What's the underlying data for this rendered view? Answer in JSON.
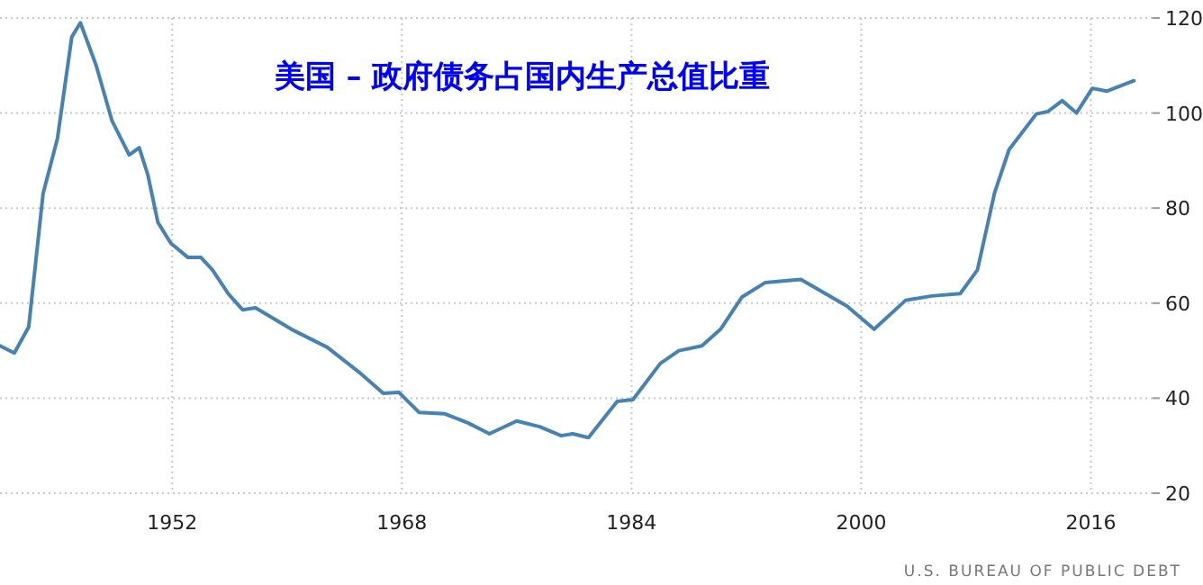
{
  "chart_data": {
    "type": "line",
    "title": "美国 – 政府债务占国内生产总值比重",
    "annotations": [
      "U.S. BUREAU OF PUBLIC DEBT"
    ],
    "x": [
      1940,
      1941,
      1942,
      1943,
      1944,
      1945,
      1945.6,
      1946.7,
      1947.8,
      1949,
      1949.7,
      1950.3,
      1951,
      1951.9,
      1953.1,
      1954,
      1954.8,
      1955.9,
      1956.9,
      1957.8,
      1960.3,
      1962.8,
      1965,
      1966.7,
      1967.8,
      1969.2,
      1971,
      1972.6,
      1974.1,
      1976,
      1977.6,
      1979.1,
      1979.9,
      1981,
      1982.6,
      1983,
      1984.1,
      1986,
      1987.3,
      1988.9,
      1990.2,
      1991.7,
      1993.3,
      1995.8,
      1999,
      2000.9,
      2003.1,
      2004.9,
      2006.9,
      2008.1,
      2009.3,
      2010.3,
      2012.2,
      2013,
      2014,
      2015,
      2016.1,
      2017.1,
      2019
    ],
    "values": [
      51,
      49.5,
      55,
      83,
      94.6,
      116,
      119,
      110,
      98.4,
      91.2,
      92.7,
      87,
      77,
      72.6,
      69.6,
      69.6,
      67,
      62,
      58.6,
      59,
      54.5,
      50.7,
      45.5,
      41,
      41.2,
      37,
      36.7,
      34.8,
      32.5,
      35.2,
      34,
      32.1,
      32.5,
      31.7,
      37.8,
      39.3,
      39.7,
      47.3,
      50,
      51,
      54.5,
      61.3,
      64.3,
      65,
      59.4,
      54.5,
      60.6,
      61.5,
      62,
      67,
      83.3,
      92.3,
      99.8,
      100.3,
      102.6,
      100,
      105.2,
      104.6,
      106.8
    ],
    "color": "#4682b4",
    "xlim": [
      1940,
      2020.3
    ],
    "ylim": [
      20,
      120
    ],
    "xticks": [
      1952,
      1968,
      1984,
      2000,
      2016
    ],
    "yticks": [
      20,
      40,
      60,
      80,
      100,
      120
    ],
    "grid": true
  }
}
